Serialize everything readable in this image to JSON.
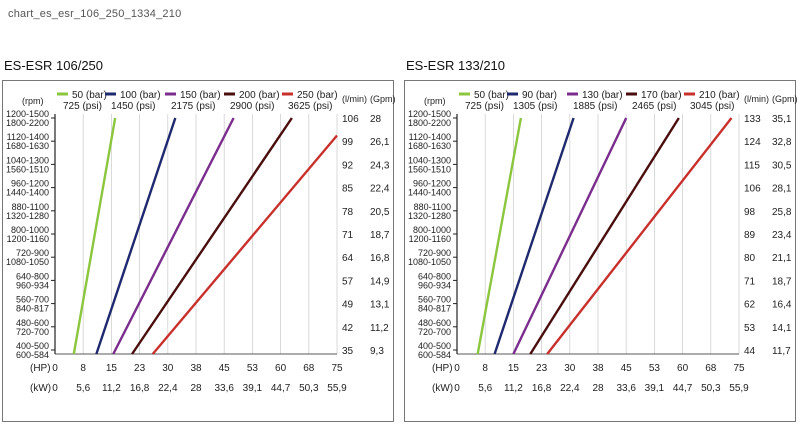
{
  "file_title": "chart_es_esr_106_250_1334_210",
  "colors": {
    "series": [
      "#8cc63f",
      "#1f2a6e",
      "#7b2d8e",
      "#4a0e0e",
      "#c8302c"
    ],
    "grid": "#d0d0d0",
    "axis": "#222222",
    "frame": "#777777"
  },
  "chart_data": [
    {
      "type": "line",
      "title": "ES-ESR 106/250",
      "y_unit_label": "(rpm)",
      "right_unit_labels": [
        "(l/min)",
        "(Gpm)"
      ],
      "x_unit_labels": [
        "(HP)",
        "(kW)"
      ],
      "hp_ticks": [
        "0",
        "8",
        "15",
        "23",
        "30",
        "38",
        "45",
        "53",
        "60",
        "68",
        "75"
      ],
      "kw_ticks": [
        "0",
        "5,6",
        "11,2",
        "16,8",
        "22,4",
        "28",
        "33,6",
        "39,1",
        "44,7",
        "50,3",
        "55,9"
      ],
      "xlim": [
        0,
        75
      ],
      "rpm_labels": [
        [
          "1200-1500",
          "1800-2200"
        ],
        [
          "1120-1400",
          "1680-1630"
        ],
        [
          "1040-1300",
          "1560-1510"
        ],
        [
          "960-1200",
          "1440-1400"
        ],
        [
          "880-1100",
          "1320-1280"
        ],
        [
          "800-1000",
          "1200-1160"
        ],
        [
          "720-900",
          "1080-1050"
        ],
        [
          "640-800",
          "960-934"
        ],
        [
          "560-700",
          "840-817"
        ],
        [
          "480-600",
          "720-700"
        ],
        [
          "400-500",
          "600-584"
        ]
      ],
      "lpm": [
        "106",
        "99",
        "92",
        "85",
        "78",
        "71",
        "64",
        "57",
        "49",
        "42",
        "35"
      ],
      "gpm": [
        "28",
        "26,1",
        "24,3",
        "22,4",
        "20,5",
        "18,7",
        "16,8",
        "14,9",
        "13,1",
        "11,2",
        "9,3"
      ],
      "series": [
        {
          "name": "50 (bar)",
          "name2": "725 (psi)",
          "hp_at_min": 5,
          "hp_at_max": 16
        },
        {
          "name": "100 (bar)",
          "name2": "1450 (psi)",
          "hp_at_min": 11,
          "hp_at_max": 32
        },
        {
          "name": "150 (bar)",
          "name2": "2175 (psi)",
          "hp_at_min": 15.5,
          "hp_at_max": 47.5
        },
        {
          "name": "200 (bar)",
          "name2": "2900 (psi)",
          "hp_at_min": 20.5,
          "hp_at_max": 63
        },
        {
          "name": "250 (bar)",
          "name2": "3625 (psi)",
          "hp_at_min": 26,
          "hp_at_max": 79
        }
      ]
    },
    {
      "type": "line",
      "title": "ES-ESR 133/210",
      "y_unit_label": "(rpm)",
      "right_unit_labels": [
        "(l/min)",
        "(Gpm)"
      ],
      "x_unit_labels": [
        "(HP)",
        "(kW)"
      ],
      "hp_ticks": [
        "0",
        "8",
        "15",
        "23",
        "30",
        "38",
        "45",
        "53",
        "60",
        "68",
        "75"
      ],
      "kw_ticks": [
        "0",
        "5,6",
        "11,2",
        "16,8",
        "22,4",
        "28",
        "33,6",
        "39,1",
        "44,7",
        "50,3",
        "55,9"
      ],
      "xlim": [
        0,
        75
      ],
      "rpm_labels": [
        [
          "1200-1500",
          "1800-2200"
        ],
        [
          "1120-1400",
          "1680-1630"
        ],
        [
          "1040-1300",
          "1560-1510"
        ],
        [
          "960-1200",
          "1440-1400"
        ],
        [
          "880-1100",
          "1320-1280"
        ],
        [
          "800-1000",
          "1200-1160"
        ],
        [
          "720-900",
          "1080-1050"
        ],
        [
          "640-800",
          "960-934"
        ],
        [
          "560-700",
          "840-817"
        ],
        [
          "480-600",
          "720-700"
        ],
        [
          "400-500",
          "600-584"
        ]
      ],
      "lpm": [
        "133",
        "124",
        "115",
        "106",
        "98",
        "89",
        "80",
        "71",
        "62",
        "53",
        "44"
      ],
      "gpm": [
        "35,1",
        "32,8",
        "30,5",
        "28,1",
        "25,8",
        "23,4",
        "21,1",
        "18,7",
        "16,4",
        "14,1",
        "11,7"
      ],
      "series": [
        {
          "name": "50 (bar)",
          "name2": "725 (psi)",
          "hp_at_min": 5.5,
          "hp_at_max": 17
        },
        {
          "name": "90 (bar)",
          "name2": "1305 (psi)",
          "hp_at_min": 10,
          "hp_at_max": 31
        },
        {
          "name": "130 (bar)",
          "name2": "1885 (psi)",
          "hp_at_min": 15,
          "hp_at_max": 45
        },
        {
          "name": "170 (bar)",
          "name2": "2465 (psi)",
          "hp_at_min": 19.5,
          "hp_at_max": 59
        },
        {
          "name": "210 (bar)",
          "name2": "3045 (psi)",
          "hp_at_min": 24,
          "hp_at_max": 73
        }
      ]
    }
  ]
}
